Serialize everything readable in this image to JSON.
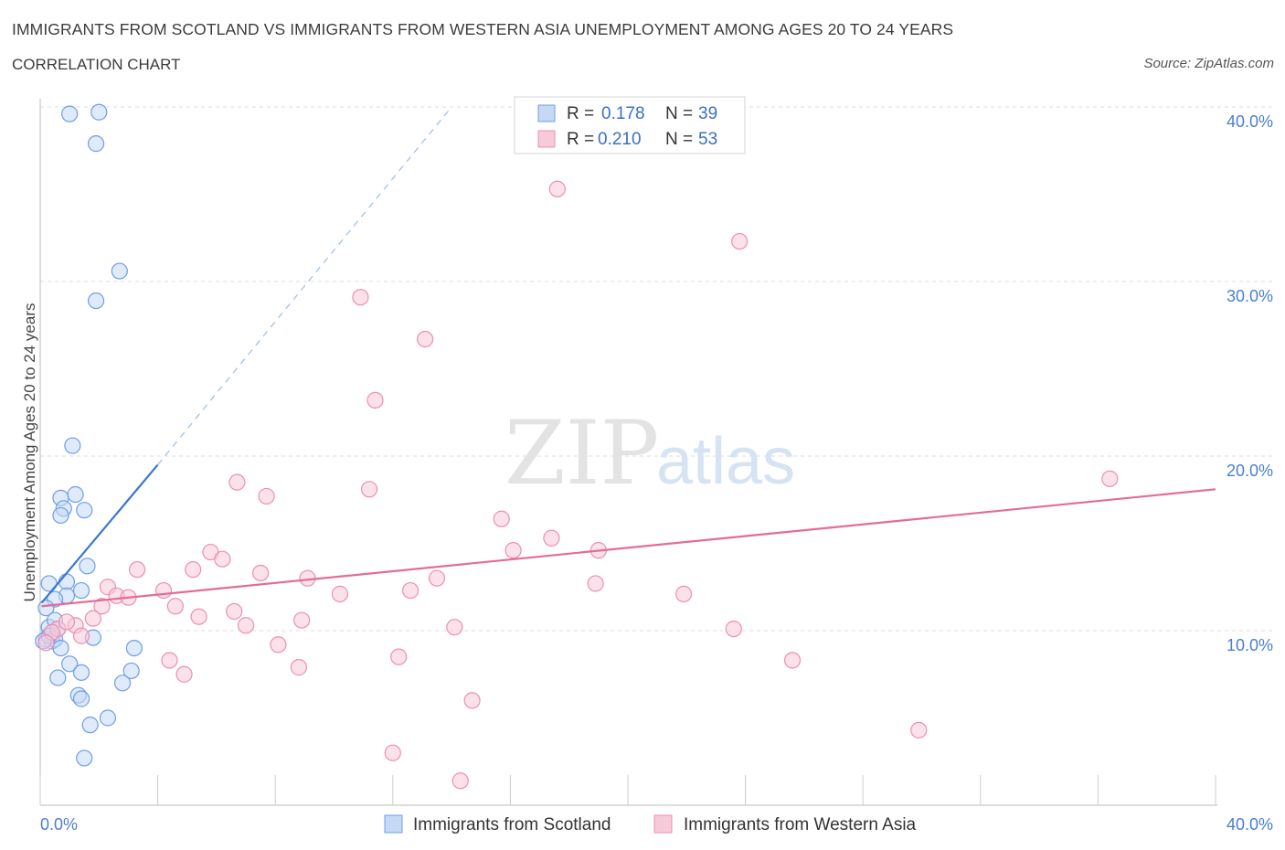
{
  "header": {
    "title": "IMMIGRANTS FROM SCOTLAND VS IMMIGRANTS FROM WESTERN ASIA UNEMPLOYMENT AMONG AGES 20 TO 24 YEARS",
    "subtitle": "CORRELATION CHART",
    "source": "Source: ZipAtlas.com"
  },
  "watermark": {
    "zip": "ZIP",
    "atlas": "atlas"
  },
  "legend": {
    "r_label": "R =",
    "n_label": "N =",
    "series": [
      {
        "r": "0.178",
        "n": "39"
      },
      {
        "r": "0.210",
        "n": "53"
      }
    ]
  },
  "chart_data": {
    "type": "scatter",
    "title": "IMMIGRANTS FROM SCOTLAND VS IMMIGRANTS FROM WESTERN ASIA UNEMPLOYMENT AMONG AGES 20 TO 24 YEARS",
    "subtitle": "CORRELATION CHART",
    "xlabel": "",
    "ylabel": "Unemployment Among Ages 20 to 24 years",
    "xlim": [
      0,
      40
    ],
    "ylim": [
      0,
      40
    ],
    "x_tick_labels": [
      "0.0%",
      "40.0%"
    ],
    "y_ticks": [
      {
        "value": 10,
        "label": "10.0%"
      },
      {
        "value": 20,
        "label": "20.0%"
      },
      {
        "value": 30,
        "label": "30.0%"
      },
      {
        "value": 40,
        "label": "40.0%"
      }
    ],
    "grid": true,
    "series": [
      {
        "name": "Immigrants from Scotland",
        "color": "#6f9ee6",
        "fill": "#c5d9f5",
        "r": 0.178,
        "n": 39,
        "trend": {
          "x0": 0.05,
          "y0": 11.6,
          "x1": 4.0,
          "y1": 19.5,
          "dash_to_x": 14.0,
          "dash_to_y": 40.0,
          "color": "#3a76d2"
        },
        "points": [
          [
            1.0,
            39.6
          ],
          [
            2.0,
            39.7
          ],
          [
            1.9,
            37.9
          ],
          [
            2.7,
            30.6
          ],
          [
            1.9,
            28.9
          ],
          [
            1.1,
            20.6
          ],
          [
            0.7,
            17.6
          ],
          [
            0.8,
            17.0
          ],
          [
            0.7,
            16.6
          ],
          [
            1.2,
            17.8
          ],
          [
            1.5,
            16.9
          ],
          [
            1.6,
            13.7
          ],
          [
            0.3,
            12.7
          ],
          [
            0.9,
            12.8
          ],
          [
            0.9,
            12.0
          ],
          [
            0.5,
            11.8
          ],
          [
            1.4,
            12.3
          ],
          [
            0.2,
            11.3
          ],
          [
            0.3,
            10.2
          ],
          [
            0.5,
            10.6
          ],
          [
            0.6,
            10.1
          ],
          [
            0.2,
            9.5
          ],
          [
            0.4,
            9.4
          ],
          [
            0.5,
            9.5
          ],
          [
            0.7,
            9.0
          ],
          [
            1.8,
            9.6
          ],
          [
            3.2,
            9.0
          ],
          [
            1.0,
            8.1
          ],
          [
            3.1,
            7.7
          ],
          [
            1.4,
            7.6
          ],
          [
            0.6,
            7.3
          ],
          [
            2.8,
            7.0
          ],
          [
            1.3,
            6.3
          ],
          [
            1.4,
            6.1
          ],
          [
            2.3,
            5.0
          ],
          [
            1.7,
            4.6
          ],
          [
            1.5,
            2.7
          ],
          [
            0.3,
            9.7
          ],
          [
            0.1,
            9.4
          ]
        ]
      },
      {
        "name": "Immigrants from Western Asia",
        "color": "#ec8fb0",
        "fill": "#f7cad9",
        "r": 0.21,
        "n": 53,
        "trend": {
          "x0": 0.05,
          "y0": 11.4,
          "x1": 40.0,
          "y1": 18.1,
          "color": "#e56b96"
        },
        "points": [
          [
            17.6,
            35.3
          ],
          [
            23.8,
            32.3
          ],
          [
            10.9,
            29.1
          ],
          [
            13.1,
            26.7
          ],
          [
            11.4,
            23.2
          ],
          [
            36.4,
            18.7
          ],
          [
            6.7,
            18.5
          ],
          [
            7.7,
            17.7
          ],
          [
            11.2,
            18.1
          ],
          [
            15.7,
            16.4
          ],
          [
            17.4,
            15.3
          ],
          [
            16.1,
            14.6
          ],
          [
            19.0,
            14.6
          ],
          [
            5.8,
            14.5
          ],
          [
            6.2,
            14.1
          ],
          [
            3.3,
            13.5
          ],
          [
            5.2,
            13.5
          ],
          [
            7.5,
            13.3
          ],
          [
            9.1,
            13.0
          ],
          [
            13.5,
            13.0
          ],
          [
            2.3,
            12.5
          ],
          [
            18.9,
            12.7
          ],
          [
            4.2,
            12.3
          ],
          [
            2.6,
            12.0
          ],
          [
            3.0,
            11.9
          ],
          [
            10.2,
            12.1
          ],
          [
            12.6,
            12.3
          ],
          [
            21.9,
            12.1
          ],
          [
            4.6,
            11.4
          ],
          [
            2.1,
            11.4
          ],
          [
            6.6,
            11.1
          ],
          [
            5.4,
            10.8
          ],
          [
            8.9,
            10.6
          ],
          [
            1.8,
            10.7
          ],
          [
            7.0,
            10.3
          ],
          [
            14.1,
            10.2
          ],
          [
            23.6,
            10.1
          ],
          [
            0.6,
            10.1
          ],
          [
            1.2,
            10.3
          ],
          [
            0.4,
            9.9
          ],
          [
            1.4,
            9.7
          ],
          [
            0.2,
            9.3
          ],
          [
            8.1,
            9.2
          ],
          [
            4.4,
            8.3
          ],
          [
            12.2,
            8.5
          ],
          [
            25.6,
            8.3
          ],
          [
            8.8,
            7.9
          ],
          [
            4.9,
            7.5
          ],
          [
            14.7,
            6.0
          ],
          [
            29.9,
            4.3
          ],
          [
            12.0,
            3.0
          ],
          [
            14.3,
            1.4
          ],
          [
            0.9,
            10.5
          ]
        ]
      }
    ]
  }
}
